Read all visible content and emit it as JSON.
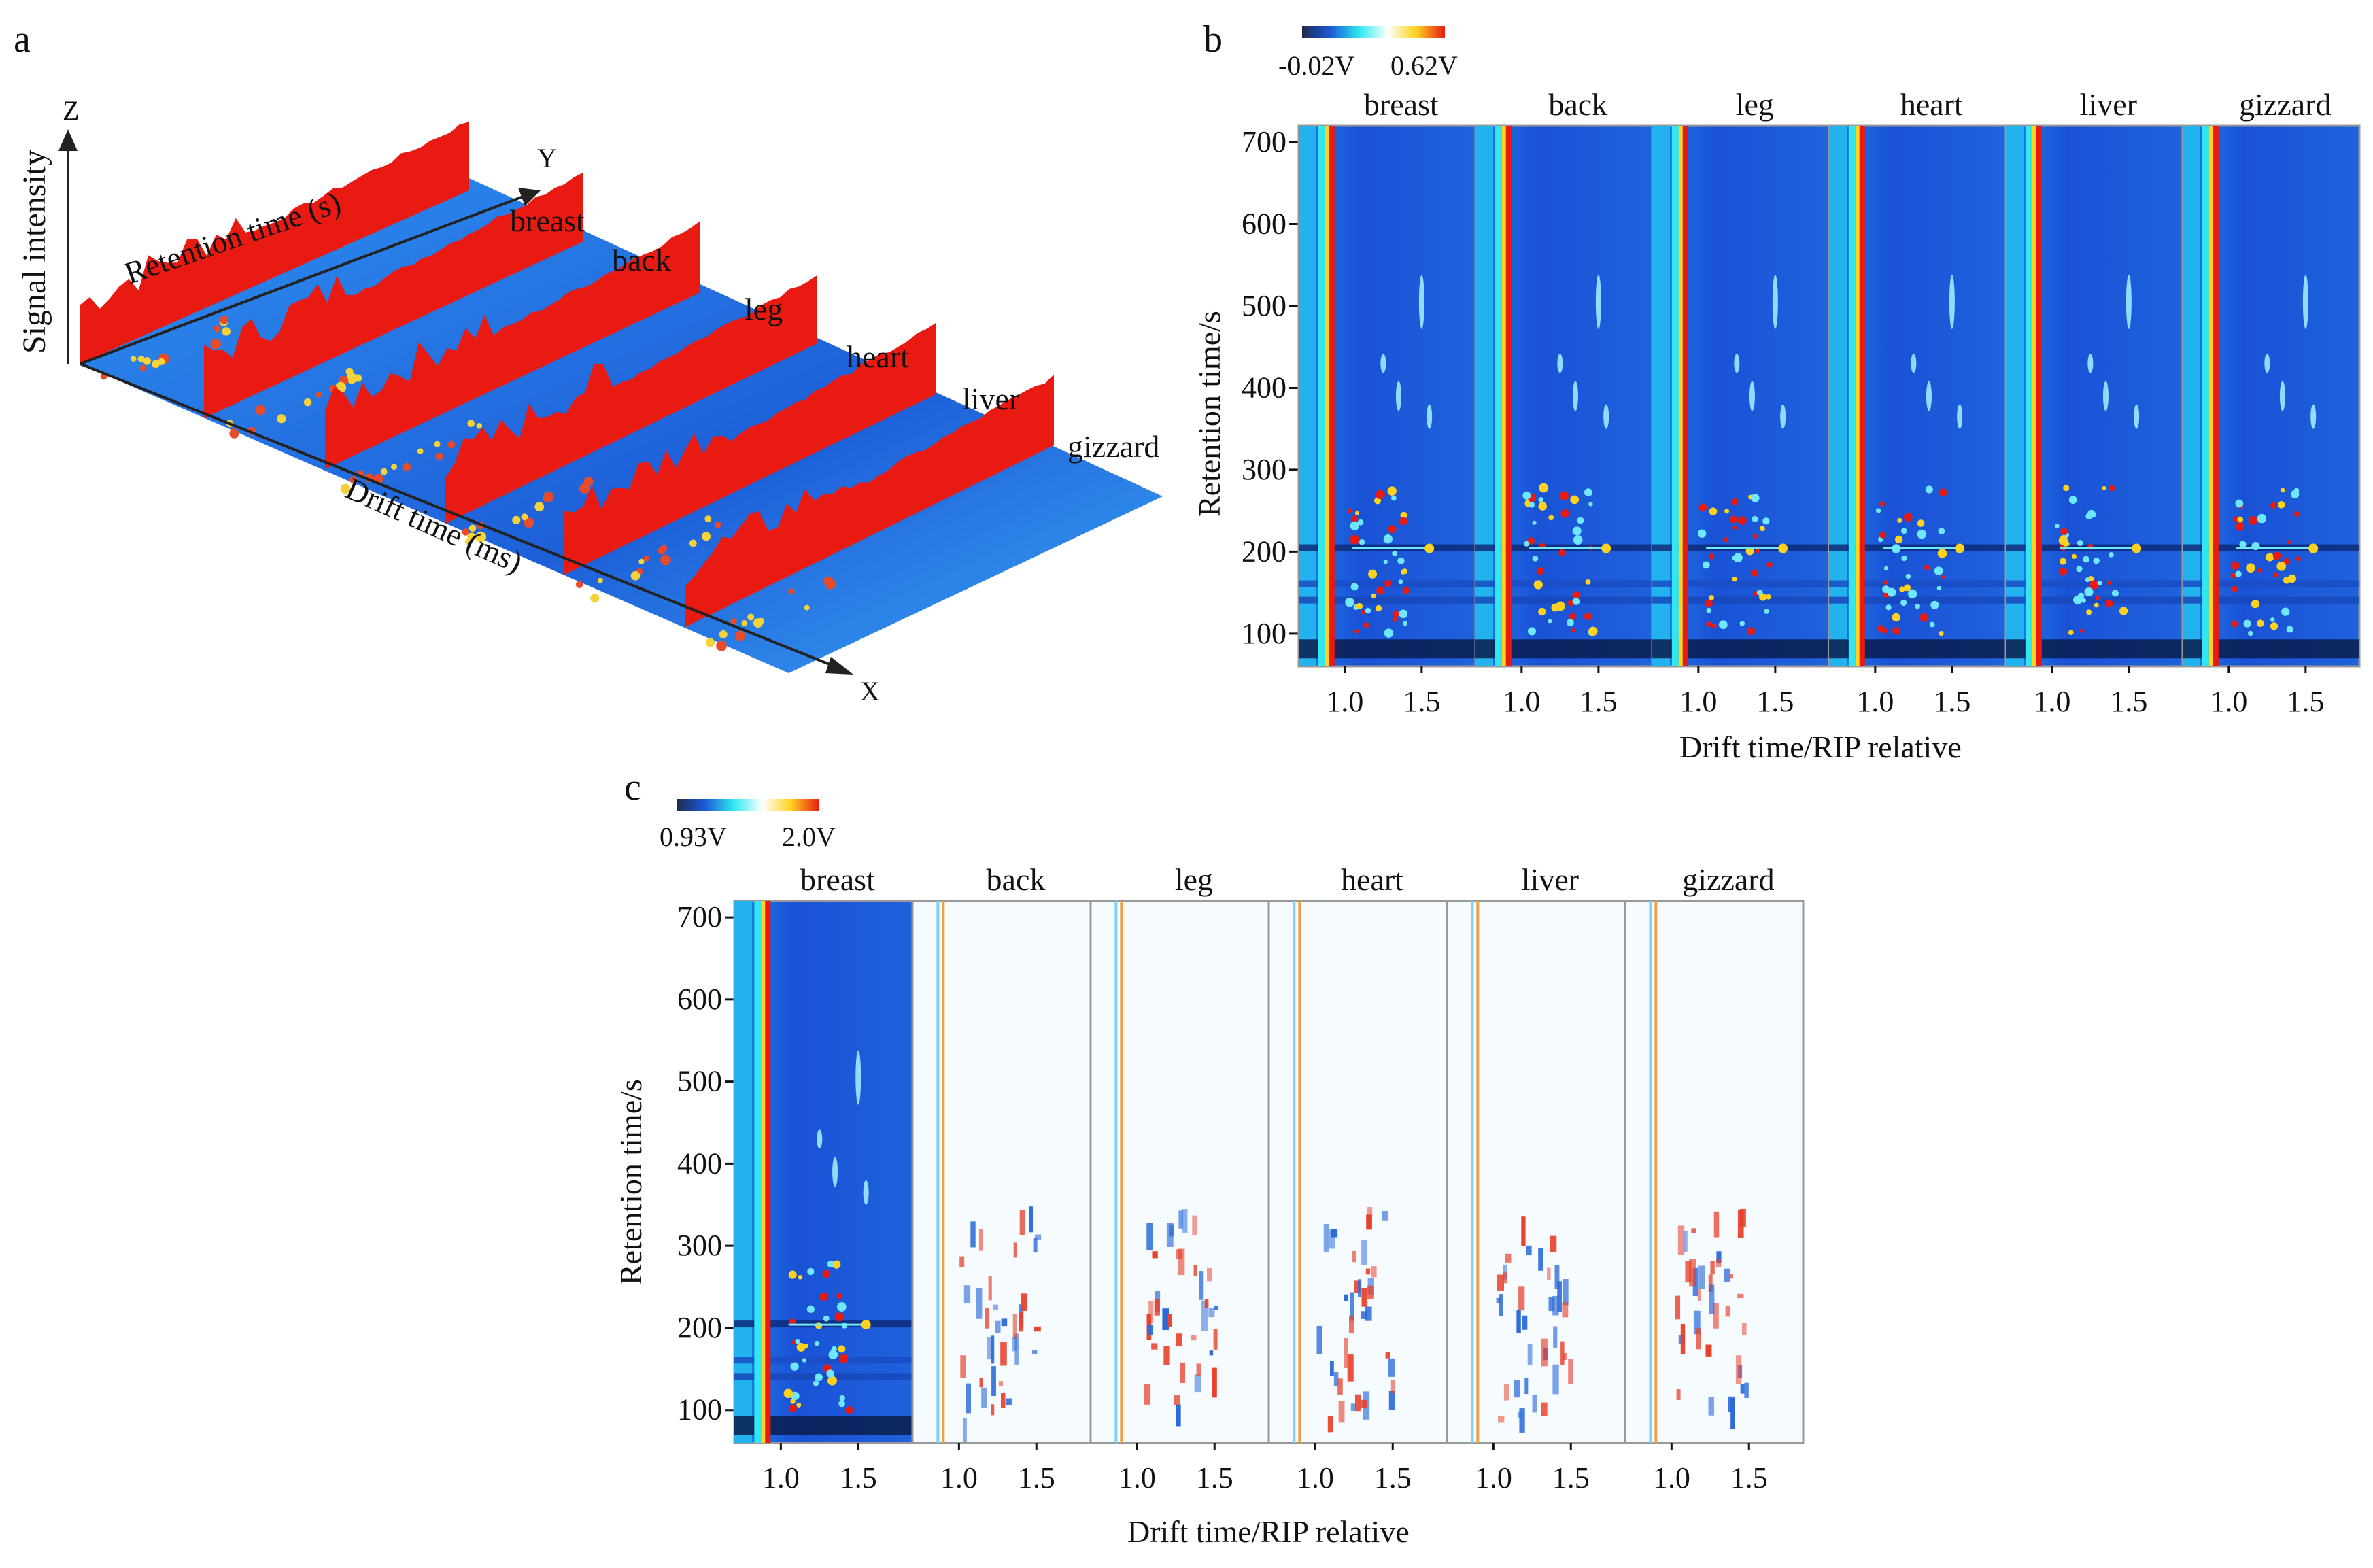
{
  "chart_data": [
    {
      "panel": "a",
      "type": "heatmap",
      "title": "",
      "axes": {
        "z": {
          "letter": "Z",
          "label": "Signal intensity"
        },
        "y": {
          "letter": "Y",
          "label": "Retention time (s)"
        },
        "x": {
          "letter": "X",
          "label": "Drift time (ms)"
        }
      },
      "samples": [
        "breast",
        "back",
        "leg",
        "heart",
        "liver",
        "gizzard"
      ]
    },
    {
      "panel": "b",
      "type": "heatmap",
      "samples": [
        "breast",
        "back",
        "leg",
        "heart",
        "liver",
        "gizzard"
      ],
      "xlabel": "Drift time/RIP relative",
      "ylabel": "Retention time/s",
      "xticks": [
        "1.0",
        "1.5"
      ],
      "xlim": [
        0.7,
        1.85
      ],
      "yticks": [
        "100",
        "200",
        "300",
        "400",
        "500",
        "600",
        "700"
      ],
      "ylim": [
        60,
        720
      ],
      "colorbar": {
        "min": "-0.02V",
        "max": "0.62V",
        "colors": [
          "#1e2a50",
          "#1f5ad8",
          "#2fe8f0",
          "#ffffff",
          "#ffd21f",
          "#e81a12"
        ]
      }
    },
    {
      "panel": "c",
      "type": "heatmap",
      "samples": [
        "breast",
        "back",
        "leg",
        "heart",
        "liver",
        "gizzard"
      ],
      "reference_sample": "breast",
      "xlabel": "Drift time/RIP relative",
      "ylabel": "Retention time/s",
      "xticks": [
        "1.0",
        "1.5"
      ],
      "xlim": [
        0.7,
        1.85
      ],
      "yticks": [
        "100",
        "200",
        "300",
        "400",
        "500",
        "600",
        "700"
      ],
      "ylim": [
        60,
        720
      ],
      "colorbar": {
        "min": "0.93V",
        "max": "2.0V",
        "colors": [
          "#1e2a50",
          "#1f5ad8",
          "#2fe8f0",
          "#ffffff",
          "#ffd21f",
          "#e81a12"
        ]
      }
    }
  ],
  "colors": {
    "background": "#1f5ad8",
    "rip_red": "#e81a12",
    "rip_cyan": "#2fe8f0",
    "text": "#111111"
  }
}
